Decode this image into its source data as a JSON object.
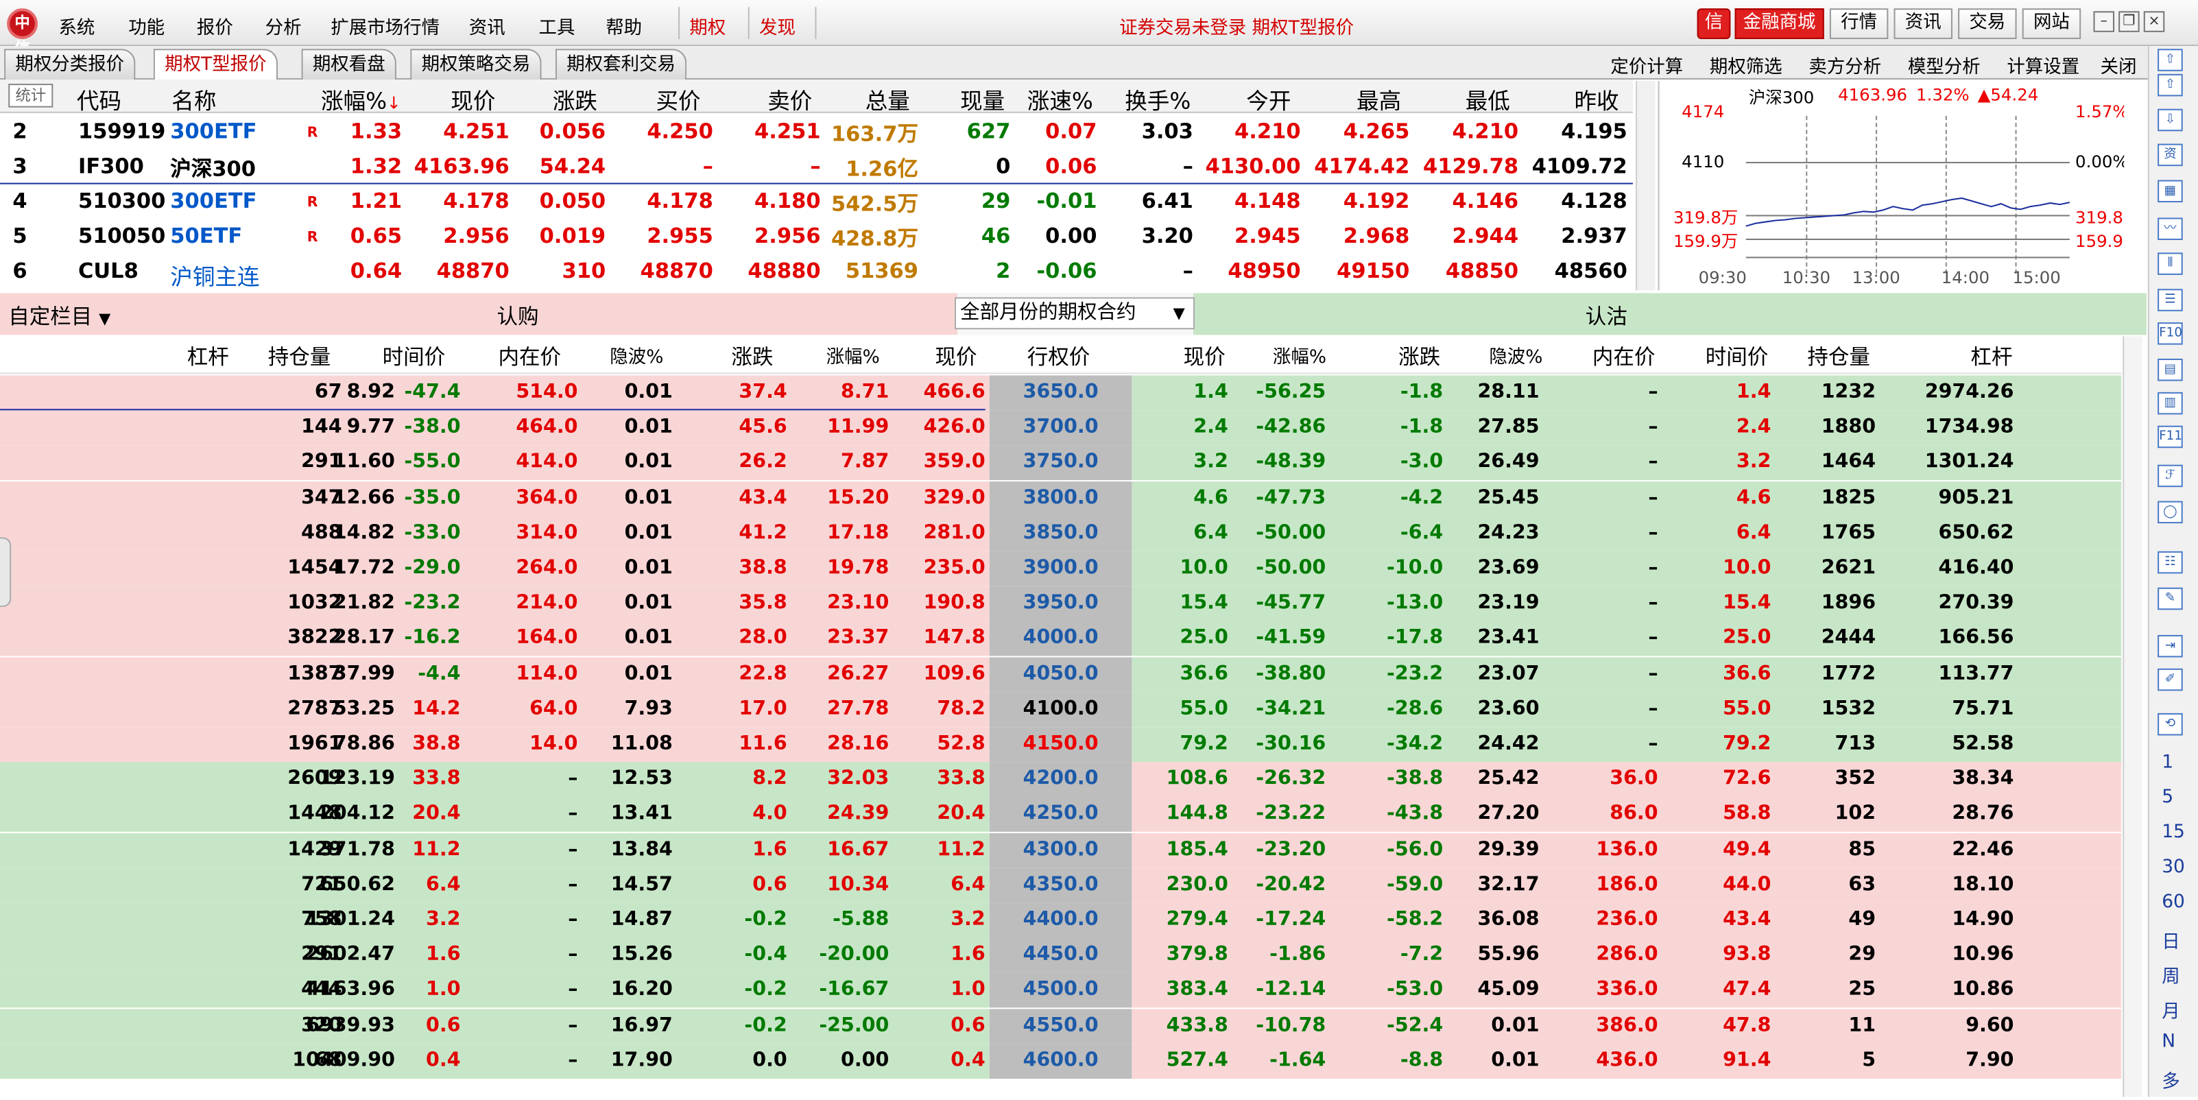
{
  "menu": {
    "logo": "中信",
    "items": [
      "系统",
      "功能",
      "报价",
      "分析",
      "扩展市场行情",
      "资讯",
      "工具",
      "帮助"
    ],
    "hl": [
      "期权",
      "发现"
    ],
    "status": "证券交易未登录  期权T型报价",
    "store_icon": "信",
    "buttons": [
      "金融商城",
      "行情",
      "资讯",
      "交易",
      "网站"
    ]
  },
  "tabs": [
    "期权分类报价",
    "期权T型报价",
    "期权看盘",
    "期权策略交易",
    "期权套利交易"
  ],
  "tools": [
    "定价计算",
    "期权筛选",
    "卖方分析",
    "模型分析",
    "计算设置",
    "关闭"
  ],
  "quote": {
    "stat_btn": "统计",
    "headers": [
      "代码",
      "名称",
      "涨幅%",
      "现价",
      "涨跌",
      "买价",
      "卖价",
      "总量",
      "现量",
      "涨速%",
      "换手%",
      "今开",
      "最高",
      "最低",
      "昨收"
    ],
    "rows": [
      {
        "idx": "2",
        "code": "159919",
        "name": "300ETF",
        "tag": "R",
        "pct": "1.33",
        "price": "4.251",
        "chg": "0.056",
        "bid": "4.250",
        "ask": "4.251",
        "vol": "163.7万",
        "cur": "627",
        "spd": "0.07",
        "turn": "3.03",
        "open": "4.210",
        "high": "4.265",
        "low": "4.210",
        "prev": "4.195"
      },
      {
        "idx": "3",
        "code": "IF300",
        "name": "沪深300",
        "tag": "",
        "pct": "1.32",
        "price": "4163.96",
        "chg": "54.24",
        "bid": "–",
        "ask": "–",
        "vol": "1.26亿",
        "cur": "0",
        "spd": "0.06",
        "turn": "–",
        "open": "4130.00",
        "high": "4174.42",
        "low": "4129.78",
        "prev": "4109.72"
      },
      {
        "idx": "4",
        "code": "510300",
        "name": "300ETF",
        "tag": "R",
        "pct": "1.21",
        "price": "4.178",
        "chg": "0.050",
        "bid": "4.178",
        "ask": "4.180",
        "vol": "542.5万",
        "cur": "29",
        "spd": "-0.01",
        "turn": "6.41",
        "open": "4.148",
        "high": "4.192",
        "low": "4.146",
        "prev": "4.128"
      },
      {
        "idx": "5",
        "code": "510050",
        "name": "50ETF",
        "tag": "R",
        "pct": "0.65",
        "price": "2.956",
        "chg": "0.019",
        "bid": "2.955",
        "ask": "2.956",
        "vol": "428.8万",
        "cur": "46",
        "spd": "0.00",
        "turn": "3.20",
        "open": "2.945",
        "high": "2.968",
        "low": "2.944",
        "prev": "2.937"
      },
      {
        "idx": "6",
        "code": "CUL8",
        "name": "沪铜主连",
        "tag": "",
        "pct": "0.64",
        "price": "48870",
        "chg": "310",
        "bid": "48870",
        "ask": "48880",
        "vol": "51369",
        "cur": "2",
        "spd": "-0.06",
        "turn": "–",
        "open": "48950",
        "high": "49150",
        "low": "48850",
        "prev": "48560"
      }
    ]
  },
  "mini": {
    "title": "沪深300",
    "price": "4163.96",
    "pct": "1.32%",
    "chg": "▲54.24",
    "y_high": "4174",
    "y_mid": "4110",
    "pct_high": "1.57%",
    "pct_mid": "0.00%",
    "vol_high": "319.8万",
    "vol_low": "159.9万",
    "times": [
      "09:30",
      "10:30",
      "13:00",
      "14:00",
      "15:00"
    ],
    "line_y": [
      104,
      102,
      101,
      100,
      99.5,
      98.5,
      98,
      97.5,
      97,
      96.5,
      96,
      94.5,
      93.5,
      94,
      92.5,
      90,
      91.5,
      92.5,
      89,
      88,
      86.5,
      85,
      84,
      86,
      88,
      90,
      88,
      91,
      92,
      90,
      89,
      87.5,
      88.5,
      87
    ]
  },
  "table": {
    "custom_label": "自定栏目",
    "call_label": "认购",
    "put_label": "认沽",
    "select": "全部月份的期权合约",
    "call_headers": [
      "杠杆",
      "持仓量",
      "时间价",
      "内在价",
      "隐波%",
      "涨跌",
      "涨幅%",
      "现价"
    ],
    "strike_header": "行权价",
    "put_headers": [
      "现价",
      "涨幅%",
      "涨跌",
      "隐波%",
      "内在价",
      "时间价",
      "持仓量",
      "杠杆"
    ],
    "rows": [
      [
        "8.92",
        "67",
        "-47.4",
        "514.0",
        "0.01",
        "37.4",
        "8.71",
        "466.6",
        "3650.0",
        "1.4",
        "-56.25",
        "-1.8",
        "28.11",
        "–",
        "1.4",
        "1232",
        "2974.26"
      ],
      [
        "9.77",
        "144",
        "-38.0",
        "464.0",
        "0.01",
        "45.6",
        "11.99",
        "426.0",
        "3700.0",
        "2.4",
        "-42.86",
        "-1.8",
        "27.85",
        "–",
        "2.4",
        "1880",
        "1734.98"
      ],
      [
        "11.60",
        "291",
        "-55.0",
        "414.0",
        "0.01",
        "26.2",
        "7.87",
        "359.0",
        "3750.0",
        "3.2",
        "-48.39",
        "-3.0",
        "26.49",
        "–",
        "3.2",
        "1464",
        "1301.24"
      ],
      [
        "12.66",
        "347",
        "-35.0",
        "364.0",
        "0.01",
        "43.4",
        "15.20",
        "329.0",
        "3800.0",
        "4.6",
        "-47.73",
        "-4.2",
        "25.45",
        "–",
        "4.6",
        "1825",
        "905.21"
      ],
      [
        "14.82",
        "488",
        "-33.0",
        "314.0",
        "0.01",
        "41.2",
        "17.18",
        "281.0",
        "3850.0",
        "6.4",
        "-50.00",
        "-6.4",
        "24.23",
        "–",
        "6.4",
        "1765",
        "650.62"
      ],
      [
        "17.72",
        "1454",
        "-29.0",
        "264.0",
        "0.01",
        "38.8",
        "19.78",
        "235.0",
        "3900.0",
        "10.0",
        "-50.00",
        "-10.0",
        "23.69",
        "–",
        "10.0",
        "2621",
        "416.40"
      ],
      [
        "21.82",
        "1032",
        "-23.2",
        "214.0",
        "0.01",
        "35.8",
        "23.10",
        "190.8",
        "3950.0",
        "15.4",
        "-45.77",
        "-13.0",
        "23.19",
        "–",
        "15.4",
        "1896",
        "270.39"
      ],
      [
        "28.17",
        "3822",
        "-16.2",
        "164.0",
        "0.01",
        "28.0",
        "23.37",
        "147.8",
        "4000.0",
        "25.0",
        "-41.59",
        "-17.8",
        "23.41",
        "–",
        "25.0",
        "2444",
        "166.56"
      ],
      [
        "37.99",
        "1387",
        "-4.4",
        "114.0",
        "0.01",
        "22.8",
        "26.27",
        "109.6",
        "4050.0",
        "36.6",
        "-38.80",
        "-23.2",
        "23.07",
        "–",
        "36.6",
        "1772",
        "113.77"
      ],
      [
        "53.25",
        "2787",
        "14.2",
        "64.0",
        "7.93",
        "17.0",
        "27.78",
        "78.2",
        "4100.0",
        "55.0",
        "-34.21",
        "-28.6",
        "23.60",
        "–",
        "55.0",
        "1532",
        "75.71"
      ],
      [
        "78.86",
        "1961",
        "38.8",
        "14.0",
        "11.08",
        "11.6",
        "28.16",
        "52.8",
        "4150.0",
        "79.2",
        "-30.16",
        "-34.2",
        "24.42",
        "–",
        "79.2",
        "713",
        "52.58"
      ],
      [
        "123.19",
        "2609",
        "33.8",
        "–",
        "12.53",
        "8.2",
        "32.03",
        "33.8",
        "4200.0",
        "108.6",
        "-26.32",
        "-38.8",
        "25.42",
        "36.0",
        "72.6",
        "352",
        "38.34"
      ],
      [
        "204.12",
        "1448",
        "20.4",
        "–",
        "13.41",
        "4.0",
        "24.39",
        "20.4",
        "4250.0",
        "144.8",
        "-23.22",
        "-43.8",
        "27.20",
        "86.0",
        "58.8",
        "102",
        "28.76"
      ],
      [
        "371.78",
        "1429",
        "11.2",
        "–",
        "13.84",
        "1.6",
        "16.67",
        "11.2",
        "4300.0",
        "185.4",
        "-23.20",
        "-56.0",
        "29.39",
        "136.0",
        "49.4",
        "85",
        "22.46"
      ],
      [
        "650.62",
        "721",
        "6.4",
        "–",
        "14.57",
        "0.6",
        "10.34",
        "6.4",
        "4350.0",
        "230.0",
        "-20.42",
        "-59.0",
        "32.17",
        "186.0",
        "44.0",
        "63",
        "18.10"
      ],
      [
        "1301.24",
        "758",
        "3.2",
        "–",
        "14.87",
        "-0.2",
        "-5.88",
        "3.2",
        "4400.0",
        "279.4",
        "-17.24",
        "-58.2",
        "36.08",
        "236.0",
        "43.4",
        "49",
        "14.90"
      ],
      [
        "2602.47",
        "291",
        "1.6",
        "–",
        "15.26",
        "-0.4",
        "-20.00",
        "1.6",
        "4450.0",
        "379.8",
        "-1.86",
        "-7.2",
        "55.96",
        "286.0",
        "93.8",
        "29",
        "10.96"
      ],
      [
        "4163.96",
        "444",
        "1.0",
        "–",
        "16.20",
        "-0.2",
        "-16.67",
        "1.0",
        "4500.0",
        "383.4",
        "-12.14",
        "-53.0",
        "45.09",
        "336.0",
        "47.4",
        "25",
        "10.86"
      ],
      [
        "6939.93",
        "320",
        "0.6",
        "–",
        "16.97",
        "-0.2",
        "-25.00",
        "0.6",
        "4550.0",
        "433.8",
        "-10.78",
        "-52.4",
        "0.01",
        "386.0",
        "47.8",
        "11",
        "9.60"
      ],
      [
        "10409.90",
        "68",
        "0.4",
        "–",
        "17.90",
        "0.0",
        "0.00",
        "0.4",
        "4600.0",
        "527.4",
        "-1.64",
        "-8.8",
        "0.01",
        "436.0",
        "91.4",
        "5",
        "7.90"
      ]
    ]
  },
  "side": {
    "icons": [
      "up-arrow-icon",
      "up-outline-icon",
      "down-outline-icon",
      "quote-icon",
      "grid-icon",
      "line-chart-icon",
      "candle-icon",
      "list-icon",
      "f10-icon",
      "doc-icon",
      "report-icon",
      "f11-icon",
      "formula-icon",
      "circle-icon",
      "list2-icon",
      "stats-icon",
      "arrow-icon",
      "pencil-icon",
      "refresh-icon"
    ],
    "glyphs": [
      "⇧",
      "⇧",
      "⇩",
      "资",
      "▦",
      "〰",
      "⫴",
      "☰",
      "F10",
      "▤",
      "▥",
      "F11",
      "ℱ",
      "◯",
      "☷",
      "✎",
      "⇥",
      "✐",
      "⟲"
    ],
    "periods": [
      "1",
      "5",
      "15",
      "30",
      "60",
      "日",
      "周",
      "月",
      "N",
      "多"
    ]
  },
  "colors": {
    "red": "#e20000",
    "green": "#007a00",
    "blue": "#0058c8",
    "itm": "#f9d6d6",
    "otm": "#c7e6c7"
  }
}
